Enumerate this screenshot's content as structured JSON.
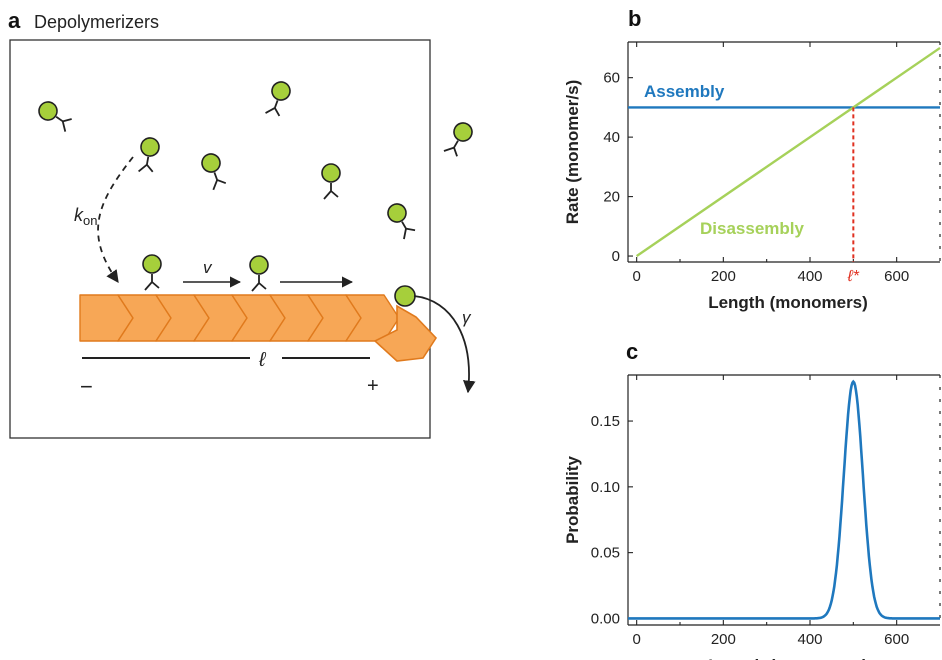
{
  "panel_a": {
    "letter": "a",
    "title": "Depolymerizers",
    "labels": {
      "k": "k",
      "k_sub": "on",
      "v": "v",
      "ell": "ℓ",
      "minus": "−",
      "plus": "+",
      "gamma": "γ"
    }
  },
  "panel_b": {
    "letter": "b",
    "annotation_assembly": "Assembly",
    "annotation_disassembly": "Disassembly",
    "ell_star": "ℓ*"
  },
  "panel_c": {
    "letter": "c"
  },
  "colors": {
    "monomer": "#a6cf3b",
    "filament": "#f7a756",
    "filament_edge": "#e07a1d",
    "assembly": "#1f78be",
    "disassembly": "#a6d15a",
    "marker": "#e03020",
    "probability": "#1f78be"
  },
  "chart_data": [
    {
      "type": "line",
      "xlabel": "Length (monomers)",
      "ylabel": "Rate (monomer/s)",
      "xlim": [
        -20,
        700
      ],
      "ylim": [
        -2,
        72
      ],
      "xticks": [
        0,
        200,
        400,
        600
      ],
      "yticks": [
        0,
        20,
        40,
        60
      ],
      "series": [
        {
          "name": "Assembly",
          "x": [
            -20,
            700
          ],
          "y": [
            50,
            50
          ]
        },
        {
          "name": "Disassembly",
          "x": [
            0,
            700
          ],
          "y": [
            0,
            70
          ]
        }
      ],
      "marker_x": 500,
      "marker_y": 50
    },
    {
      "type": "line",
      "xlabel": "Length (monomers)",
      "ylabel": "Probability",
      "xlim": [
        -20,
        700
      ],
      "ylim": [
        -0.005,
        0.185
      ],
      "xticks": [
        0,
        200,
        400,
        600
      ],
      "yticks": [
        0,
        0.05,
        0.1,
        0.15
      ],
      "ytick_labels": [
        "0.00",
        "0.05",
        "0.10",
        "0.15"
      ],
      "peak_x": 500,
      "peak_y": 0.18,
      "width": 22
    }
  ]
}
